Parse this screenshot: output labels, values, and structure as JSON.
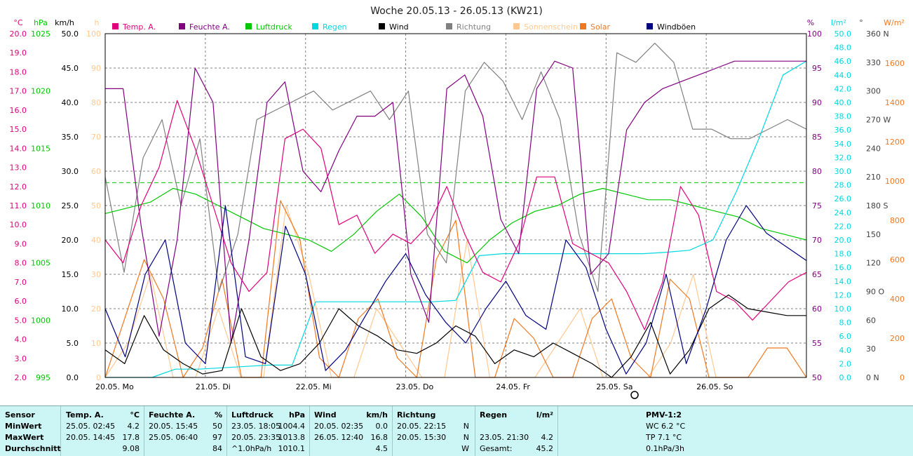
{
  "title": "Woche 20.05.13 - 26.05.13 (KW21)",
  "colors": {
    "temp": "#e0007a",
    "feuchte": "#800080",
    "luftdruck": "#00c800",
    "regen": "#00d8e0",
    "wind": "#000000",
    "richtung": "#808080",
    "sonnenschein": "#ffc890",
    "solar": "#f07820",
    "windboeen": "#000080",
    "stats_bg": "#ccf5f5"
  },
  "legend": [
    {
      "key": "temp",
      "label": "Temp. A."
    },
    {
      "key": "feuchte",
      "label": "Feuchte A."
    },
    {
      "key": "luftdruck",
      "label": "Luftdruck"
    },
    {
      "key": "regen",
      "label": "Regen"
    },
    {
      "key": "wind",
      "label": "Wind"
    },
    {
      "key": "richtung",
      "label": "Richtung"
    },
    {
      "key": "sonnenschein",
      "label": "Sonnenschein"
    },
    {
      "key": "solar",
      "label": "Solar"
    },
    {
      "key": "windboeen",
      "label": "Windböen"
    }
  ],
  "axes": {
    "temp": {
      "unit": "°C",
      "ticks": [
        "20.0",
        "19.0",
        "18.0",
        "17.0",
        "16.0",
        "15.0",
        "14.0",
        "13.0",
        "12.0",
        "11.0",
        "10.0",
        "9.0",
        "8.0",
        "7.0",
        "6.0",
        "5.0",
        "4.0",
        "3.0",
        "2.0"
      ]
    },
    "pressure": {
      "unit": "hPa",
      "ticks": [
        "1025",
        "1020",
        "1015",
        "1010",
        "1005",
        "1000",
        "995"
      ]
    },
    "wind": {
      "unit": "km/h",
      "ticks": [
        "50.0",
        "45.0",
        "40.0",
        "35.0",
        "30.0",
        "25.0",
        "20.0",
        "15.0",
        "10.0",
        "5.0",
        "0.0"
      ]
    },
    "sunshine": {
      "unit": "h",
      "ticks": [
        "100",
        "90",
        "80",
        "70",
        "60",
        "50",
        "40",
        "30",
        "20",
        "10",
        "0"
      ]
    },
    "humidity": {
      "unit": "%",
      "ticks": [
        "100",
        "95",
        "90",
        "85",
        "80",
        "75",
        "70",
        "65",
        "60",
        "55",
        "50"
      ]
    },
    "rain": {
      "unit": "l/m²",
      "ticks": [
        "50.0",
        "48.0",
        "46.0",
        "44.0",
        "42.0",
        "40.0",
        "38.0",
        "36.0",
        "34.0",
        "32.0",
        "30.0",
        "28.0",
        "26.0",
        "24.0",
        "22.0",
        "20.0",
        "18.0",
        "16.0",
        "14.0",
        "12.0",
        "10.0",
        "8.0",
        "6.0",
        "4.0",
        "2.0",
        "0.0"
      ]
    },
    "direction": {
      "unit": "°",
      "ticks": [
        "360 N",
        "330",
        "300",
        "270 W",
        "240",
        "210",
        "180 S",
        "150",
        "120",
        "90  O",
        "60",
        "30",
        "0   N"
      ]
    },
    "solar": {
      "unit": "W/m²",
      "ticks": [
        "1600",
        "1400",
        "1200",
        "1000",
        "800",
        "600",
        "400",
        "200",
        "0"
      ]
    },
    "days": [
      "20.05.  Mo",
      "21.05.  Di",
      "22.05.  Mi",
      "23.05.  Do",
      "24.05.  Fr",
      "25.05.  Sa",
      "26.05.  So"
    ]
  },
  "chart_data": {
    "type": "line",
    "title": "Woche 20.05.13 - 26.05.13 (KW21)",
    "x_start": "20.05. 00:00",
    "x_end": "27.05. 00:00",
    "hours_per_point": 6,
    "series": [
      {
        "name": "Temp. A.",
        "unit": "°C",
        "values": [
          9.2,
          8.0,
          11.0,
          13.0,
          16.5,
          14.0,
          11.0,
          8.0,
          6.5,
          7.5,
          14.5,
          15.0,
          14.0,
          10.0,
          10.5,
          8.5,
          9.5,
          9.0,
          10.0,
          12.0,
          9.5,
          7.5,
          7.0,
          9.0,
          12.5,
          12.5,
          9.0,
          8.5,
          8.0,
          6.5,
          4.5,
          7.0,
          12.0,
          10.5,
          6.5,
          6.0,
          5.0,
          6.0,
          7.0,
          7.5
        ]
      },
      {
        "name": "Feuchte A.",
        "unit": "%",
        "values": [
          92,
          92,
          72,
          56,
          70,
          95,
          90,
          55,
          70,
          90,
          93,
          80,
          77,
          83,
          88,
          88,
          90,
          65,
          58,
          92,
          94,
          88,
          73,
          68,
          92,
          96,
          95,
          65,
          68,
          86,
          90,
          92,
          93,
          94,
          95,
          96,
          96,
          96,
          96,
          96
        ]
      },
      {
        "name": "Luftdruck",
        "unit": "hPa",
        "values": [
          1009.3,
          1009.8,
          1010.3,
          1011.5,
          1011.0,
          1010.0,
          1009.0,
          1008.0,
          1007.5,
          1007.0,
          1006.0,
          1007.5,
          1009.5,
          1011.0,
          1009.0,
          1006.0,
          1005.0,
          1007.0,
          1008.5,
          1009.5,
          1010.0,
          1011.0,
          1011.5,
          1011.0,
          1010.5,
          1010.5,
          1010.0,
          1009.5,
          1009.0,
          1008.0,
          1007.5,
          1007.0
        ]
      },
      {
        "name": "Regen",
        "unit": "l/m²",
        "values": [
          0,
          0,
          0,
          1.2,
          1.2,
          1.4,
          1.6,
          1.8,
          1.8,
          11,
          11,
          11,
          11,
          11,
          11,
          11.2,
          17.7,
          18,
          18,
          18,
          18,
          18,
          18,
          18,
          18.2,
          18.5,
          20,
          27,
          35,
          44,
          46
        ]
      },
      {
        "name": "Wind",
        "unit": "km/h",
        "values": [
          4.0,
          2.0,
          9.0,
          4.0,
          2.0,
          0.5,
          1.0,
          10.0,
          3.0,
          1.0,
          2.0,
          5.0,
          10.0,
          7.5,
          6.0,
          4.0,
          3.5,
          5.0,
          7.5,
          6.0,
          2.0,
          4.0,
          3.0,
          5.0,
          3.5,
          2.0,
          0.0,
          3.0,
          8.0,
          0.5,
          4.0,
          10.0,
          12.0,
          10.0,
          9.5,
          9.0,
          9.0
        ]
      },
      {
        "name": "Richtung",
        "unit": "°",
        "values": [
          210,
          110,
          230,
          270,
          180,
          250,
          90,
          150,
          270,
          280,
          290,
          300,
          280,
          290,
          300,
          270,
          300,
          150,
          120,
          300,
          330,
          310,
          270,
          320,
          270,
          150,
          90,
          340,
          330,
          350,
          330,
          260,
          260,
          250,
          250,
          260,
          270,
          260
        ]
      },
      {
        "name": "Sonnenschein",
        "unit": "h",
        "values": [
          0,
          10,
          30,
          0,
          0,
          20,
          0,
          0,
          50,
          30,
          0,
          0,
          20,
          10,
          0,
          0,
          40,
          0,
          0,
          0,
          10,
          20,
          0,
          0,
          0,
          10,
          30,
          0,
          0,
          0,
          0,
          0
        ]
      },
      {
        "name": "Solar",
        "unit": "W/m²",
        "values": [
          0,
          300,
          600,
          400,
          0,
          150,
          500,
          0,
          0,
          900,
          700,
          100,
          0,
          300,
          400,
          100,
          0,
          600,
          800,
          0,
          0,
          300,
          200,
          0,
          0,
          300,
          400,
          100,
          0,
          500,
          400,
          0,
          0,
          0,
          150,
          150,
          0
        ]
      },
      {
        "name": "Windböen",
        "unit": "km/h",
        "values": [
          10.0,
          3.0,
          15.0,
          20.0,
          5.0,
          2.0,
          25.0,
          3.0,
          2.0,
          22.0,
          15.0,
          1.0,
          4.0,
          9.0,
          14.0,
          18.0,
          12.0,
          8.0,
          5.0,
          10.0,
          14.0,
          9.0,
          7.0,
          20.0,
          16.0,
          7.0,
          0.5,
          5.0,
          15.0,
          2.0,
          10.0,
          20.0,
          25.0,
          21.0,
          19.0,
          17.0
        ]
      }
    ],
    "axes": {
      "temp_range": [
        2.0,
        20.0
      ],
      "pressure_range": [
        995,
        1025
      ],
      "wind_range": [
        0.0,
        50.0
      ],
      "sunshine_range": [
        0,
        100
      ],
      "humidity_range": [
        50,
        100
      ],
      "rain_range": [
        0.0,
        50.0
      ],
      "direction_range": [
        0,
        360
      ],
      "solar_range": [
        0,
        1750
      ]
    },
    "grid": true,
    "legend_position": "top"
  },
  "stats": {
    "headers": {
      "sensor": "Sensor",
      "temp": "Temp. A.",
      "temp_unit": "°C",
      "feuchte": "Feuchte A.",
      "feuchte_unit": "%",
      "luft": "Luftdruck",
      "luft_unit": "hPa",
      "wind": "Wind",
      "wind_unit": "km/h",
      "richtung": "Richtung",
      "regen": "Regen",
      "regen_unit": "l/m²",
      "pmv": "PMV-1:2"
    },
    "rows": [
      {
        "label": "MinWert",
        "temp_t": "25.05.  02:45",
        "temp_v": "4.2",
        "feu_t": "20.05.  15:45",
        "feu_v": "50",
        "luft_t": "23.05.  18:05",
        "luft_v": "1004.4",
        "wind_t": "20.05.  02:35",
        "wind_v": "0.0",
        "rich_t": "20.05.  22:15",
        "rich_v": "N",
        "regen_t": "",
        "regen_v": "",
        "pmv": "WC 6.2 °C"
      },
      {
        "label": "MaxWert",
        "temp_t": "20.05.  14:45",
        "temp_v": "17.8",
        "feu_t": "25.05.  06:40",
        "feu_v": "97",
        "luft_t": "20.05.  23:35",
        "luft_v": "1013.8",
        "wind_t": "26.05.  12:40",
        "wind_v": "16.8",
        "rich_t": "20.05.  15:30",
        "rich_v": "N",
        "regen_t": "23.05.  21:30",
        "regen_v": "4.2",
        "pmv": "TP 7.1 °C"
      },
      {
        "label": "Durchschnitt",
        "temp_t": "",
        "temp_v": "9.08",
        "feu_t": "",
        "feu_v": "84",
        "luft_t": "^1.0hPa/h",
        "luft_v": "1010.1",
        "wind_t": "",
        "wind_v": "4.5",
        "rich_t": "",
        "rich_v": "W",
        "regen_t": "Gesamt:",
        "regen_v": "45.2",
        "pmv": "0.1hPa/3h"
      }
    ]
  }
}
